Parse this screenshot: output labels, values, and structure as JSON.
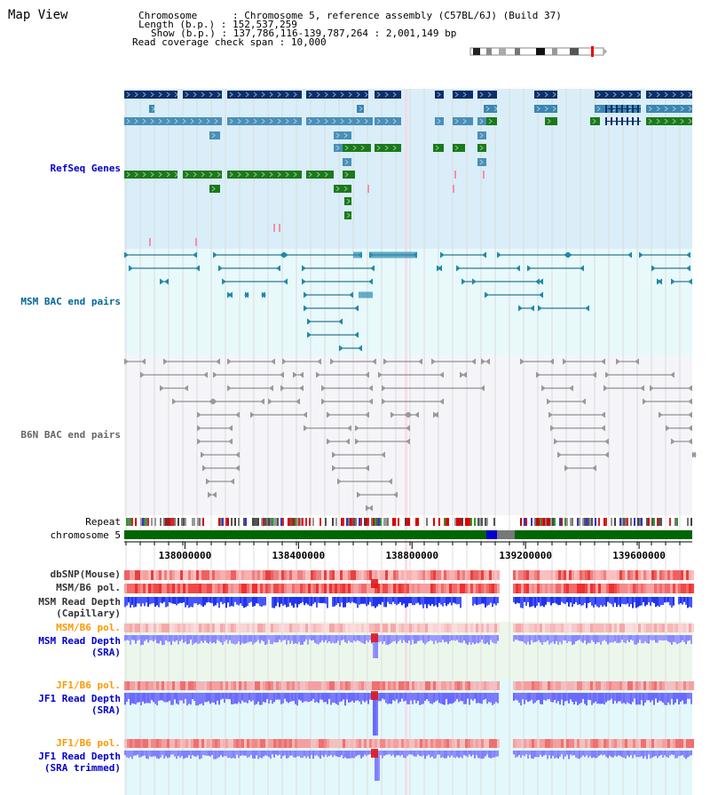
{
  "page": {
    "title": "Map View"
  },
  "info": {
    "chromosome": {
      "key": "Chromosome",
      "value": "Chromosome 5, reference assembly (C57BL/6J) (Build 37)"
    },
    "length": {
      "key": "Length (b.p.)",
      "value": "152,537,259"
    },
    "show": {
      "key": "Show (b.p.)",
      "value": "137,786,116-139,787,264 : 2,001,149 bp"
    },
    "coverage": {
      "key": "Read coverage check span",
      "value": "10,000"
    }
  },
  "tracks": {
    "refseq": {
      "label": "RefSeq Genes",
      "color": "#0000cc"
    },
    "msm_bac": {
      "label": "MSM BAC end pairs",
      "color": "#006699"
    },
    "b6n_bac": {
      "label": "B6N BAC end pairs",
      "color": "#666666"
    },
    "repeat": {
      "label": "Repeat"
    },
    "chromosome": {
      "label": "chromosome 5"
    },
    "dbsnp": {
      "label": "dbSNP(Mouse)"
    },
    "msm_pol": {
      "label": "MSM/B6 pol."
    },
    "msm_depth_cap": {
      "label_line1": "MSM Read Depth",
      "label_line2": "(Capillary)"
    },
    "msm_pol_sra": {
      "label": "MSM/B6 pol.",
      "color": "#ff9900"
    },
    "msm_depth_sra": {
      "label_line1": "MSM Read Depth",
      "label_line2": "(SRA)",
      "color": "#0000cc"
    },
    "jf1_pol_sra": {
      "label": "JF1/B6 pol.",
      "color": "#ff9900"
    },
    "jf1_depth_sra": {
      "label_line1": "JF1 Read Depth",
      "label_line2": "(SRA)",
      "color": "#0000cc"
    },
    "jf1_pol_trim": {
      "label": "JF1/B6 pol.",
      "color": "#ff9900"
    },
    "jf1_depth_trim": {
      "label_line1": "JF1 Read Depth",
      "label_line2": "(SRA trimmed)",
      "color": "#0000cc"
    }
  },
  "axis": {
    "range": [
      137786116,
      139787264
    ],
    "ticks": [
      {
        "value": 138000000,
        "label": "138000000"
      },
      {
        "value": 138400000,
        "label": "138400000"
      },
      {
        "value": 138800000,
        "label": "138800000"
      },
      {
        "value": 139200000,
        "label": "139200000"
      },
      {
        "value": 139600000,
        "label": "139600000"
      }
    ]
  }
}
